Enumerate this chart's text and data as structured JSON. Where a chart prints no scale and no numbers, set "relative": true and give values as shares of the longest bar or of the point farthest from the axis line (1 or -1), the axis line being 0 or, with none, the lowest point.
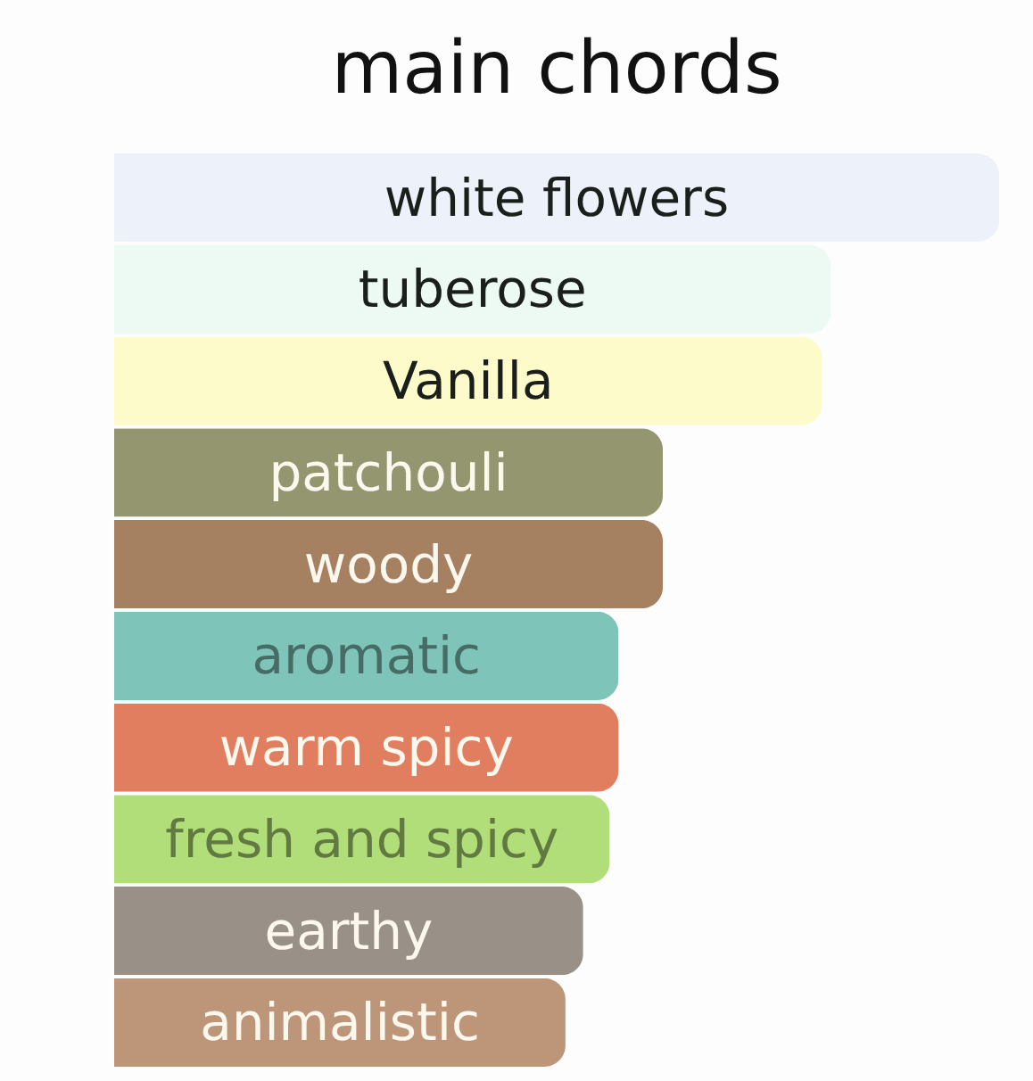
{
  "chart_data": {
    "type": "bar",
    "orientation": "horizontal",
    "relative": true,
    "title": "main chords",
    "categories": [
      "white flowers",
      "tuberose",
      "Vanilla",
      "patchouli",
      "woody",
      "aromatic",
      "warm spicy",
      "fresh and spicy",
      "earthy",
      "animalistic"
    ],
    "values": [
      1,
      0.81,
      0.8,
      0.62,
      0.62,
      0.57,
      0.57,
      0.56,
      0.53,
      0.51
    ],
    "colors": [
      "#edf2fa",
      "#edfaf3",
      "#fefbcb",
      "#949670",
      "#a58061",
      "#7fc4b8",
      "#e17e60",
      "#b1de78",
      "#999087",
      "#bd967a"
    ]
  }
}
